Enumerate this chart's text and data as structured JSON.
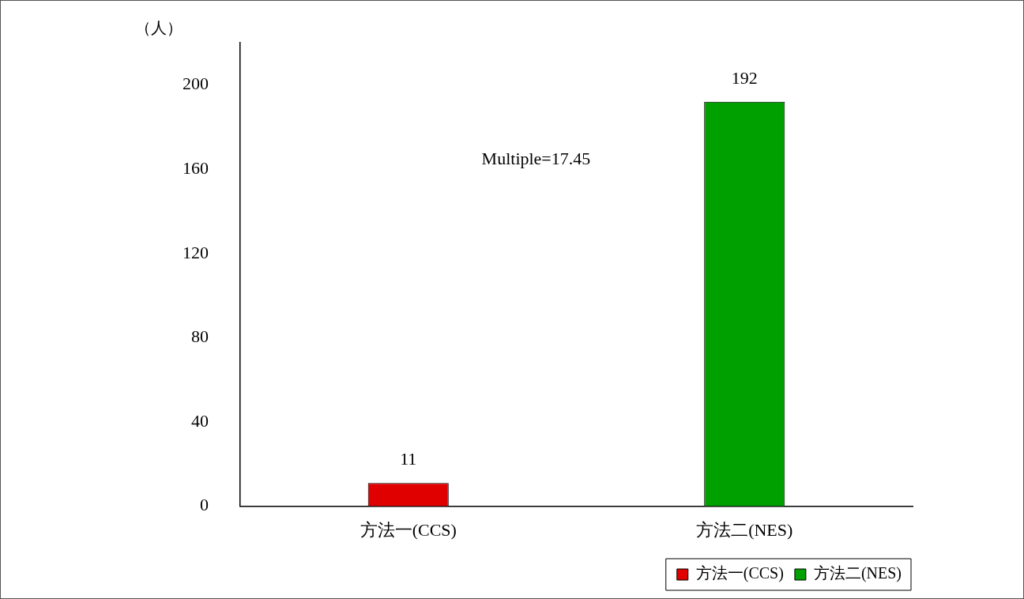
{
  "chart_data": {
    "type": "bar",
    "ylabel": "（人）",
    "categories": [
      "方法一(CCS)",
      "方法二(NES)"
    ],
    "series": [
      {
        "name": "方法一(CCS)",
        "color": "#e00000",
        "values": [
          11,
          null
        ]
      },
      {
        "name": "方法二(NES)",
        "color": "#00a000",
        "values": [
          null,
          192
        ]
      }
    ],
    "ylim": [
      0,
      220
    ],
    "yticks": [
      0,
      40,
      80,
      120,
      160,
      200
    ],
    "grid": false,
    "legend": "bottom right",
    "data_labels": true,
    "annotations": [
      "Multiple=17.45"
    ]
  }
}
